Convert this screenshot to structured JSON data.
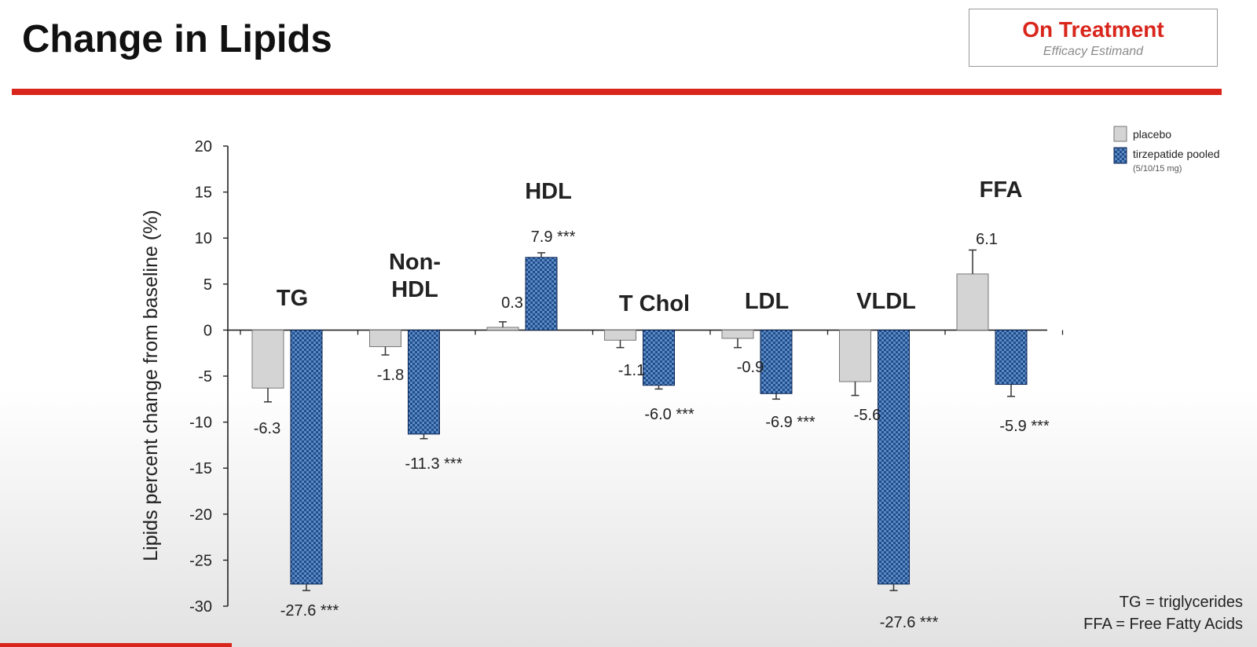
{
  "slide": {
    "title": "Change in Lipids",
    "badge": {
      "title": "On Treatment",
      "subtitle": "Efficacy Estimand"
    },
    "footnotes": [
      "TG = triglycerides",
      "FFA = Free Fatty Acids"
    ]
  },
  "chart_data": {
    "type": "bar",
    "title": "",
    "xlabel": "",
    "ylabel": "Lipids percent change from baseline (%)",
    "ylim": [
      -30,
      20
    ],
    "yticks": [
      20,
      15,
      10,
      5,
      0,
      -5,
      -10,
      -15,
      -20,
      -25,
      -30
    ],
    "grid": false,
    "legend_position": "top-right",
    "categories": [
      "TG",
      "Non-HDL",
      "HDL",
      "T Chol",
      "LDL",
      "VLDL",
      "FFA"
    ],
    "series": [
      {
        "name": "placebo",
        "values": [
          -6.3,
          -1.8,
          0.3,
          -1.1,
          -0.9,
          -5.6,
          6.1
        ],
        "labels": [
          "-6.3",
          "-1.8",
          "0.3",
          "-1.1",
          "-0.9",
          "-5.6",
          "6.1"
        ],
        "errors": [
          1.5,
          0.9,
          0.6,
          0.8,
          1.0,
          1.5,
          2.6
        ],
        "color": "#d4d4d4"
      },
      {
        "name": "tirzepatide pooled",
        "subname": "(5/10/15 mg)",
        "values": [
          -27.6,
          -11.3,
          7.9,
          -6.0,
          -6.9,
          -27.6,
          -5.9
        ],
        "labels": [
          "-27.6 ***",
          "-11.3 ***",
          "7.9 ***",
          "-6.0 ***",
          "-6.9 ***",
          "-27.6 ***",
          "-5.9 ***"
        ],
        "errors": [
          0.7,
          0.5,
          0.5,
          0.4,
          0.6,
          0.7,
          1.3
        ],
        "color": "#1f4e8c"
      }
    ]
  }
}
